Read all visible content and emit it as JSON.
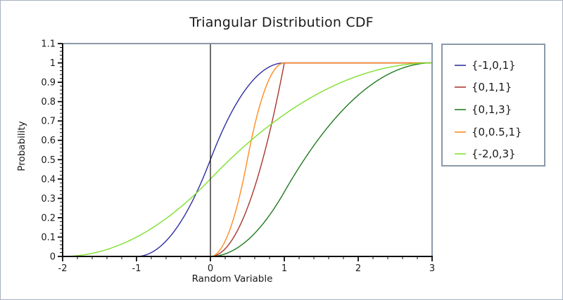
{
  "frame": {
    "background": "#ffffff",
    "outer_border_color": "#a9b3c0",
    "plot_frame_color": "#8b99a9",
    "axis_color": "#0d0d0d",
    "text_color": "#1a1a1a"
  },
  "chart": {
    "title": "Triangular Distribution CDF",
    "xlabel": "Random Variable",
    "ylabel": "Probability"
  },
  "chart_data": {
    "type": "line",
    "title": "Triangular Distribution CDF",
    "xlabel": "Random Variable",
    "ylabel": "Probability",
    "curve_family": "triangular_cdf",
    "xlim": [
      -2,
      3
    ],
    "ylim": [
      0,
      1.1
    ],
    "x_major_ticks": [
      -2,
      -1,
      0,
      1,
      2,
      3
    ],
    "x_tick_labels": [
      "-2",
      "-1",
      "0",
      "1",
      "2",
      "3"
    ],
    "x_minor_tick_step": 0.2,
    "y_major_ticks": [
      0,
      0.1,
      0.2,
      0.3,
      0.4,
      0.5,
      0.6,
      0.7,
      0.8,
      0.9,
      1,
      1.1
    ],
    "y_tick_labels": [
      "0",
      "0.1",
      "0.2",
      "0.3",
      "0.4",
      "0.5",
      "0.6",
      "0.7",
      "0.8",
      "0.9",
      "1",
      "1.1"
    ],
    "y_minor_tick_step": 0.02,
    "grid": false,
    "legend_position": "right",
    "zero_reference_line_x": 0,
    "series": [
      {
        "name": "{-1,0,1}",
        "min": -1,
        "mode": 0,
        "max": 1,
        "color": "#2e2ea2",
        "key_points": [
          [
            -1,
            0
          ],
          [
            0,
            0.5
          ],
          [
            1,
            1
          ]
        ]
      },
      {
        "name": "{0,1,1}",
        "min": 0,
        "mode": 1,
        "max": 1,
        "color": "#a8352e",
        "key_points": [
          [
            0,
            0
          ],
          [
            1,
            1
          ]
        ]
      },
      {
        "name": "{0,1,3}",
        "min": 0,
        "mode": 1,
        "max": 3,
        "color": "#1f7a1f",
        "key_points": [
          [
            0,
            0
          ],
          [
            1,
            0.333
          ],
          [
            3,
            1
          ]
        ]
      },
      {
        "name": "{0,0.5,1}",
        "min": 0,
        "mode": 0.5,
        "max": 1,
        "color": "#ff8c1f",
        "key_points": [
          [
            0,
            0
          ],
          [
            0.5,
            0.5
          ],
          [
            1,
            1
          ]
        ]
      },
      {
        "name": "{-2,0,3}",
        "min": -2,
        "mode": 0,
        "max": 3,
        "color": "#7fe02e",
        "key_points": [
          [
            -2,
            0
          ],
          [
            0,
            0.4
          ],
          [
            3,
            1
          ]
        ]
      }
    ]
  }
}
